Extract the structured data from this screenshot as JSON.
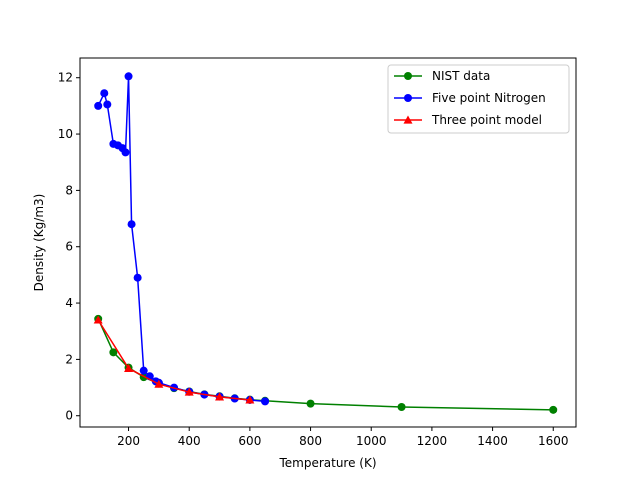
{
  "chart_data": {
    "type": "line",
    "title": "",
    "xlabel": "Temperature (K)",
    "ylabel": "Density (Kg/m3)",
    "xlim": [
      40,
      1675
    ],
    "ylim": [
      -0.4,
      12.7
    ],
    "xticks": [
      200,
      400,
      600,
      800,
      1000,
      1200,
      1400,
      1600
    ],
    "yticks": [
      0,
      2,
      4,
      6,
      8,
      10,
      12
    ],
    "grid": false,
    "legend_position": "top-right",
    "series": [
      {
        "name": "NIST data",
        "color": "#008000",
        "marker": "circle",
        "x": [
          100,
          150,
          200,
          250,
          300,
          350,
          400,
          450,
          500,
          550,
          600,
          650,
          800,
          1100,
          1600
        ],
        "y": [
          3.44,
          2.25,
          1.71,
          1.37,
          1.14,
          0.98,
          0.86,
          0.76,
          0.69,
          0.62,
          0.57,
          0.53,
          0.43,
          0.31,
          0.21
        ]
      },
      {
        "name": "Five point Nitrogen",
        "color": "#0000ff",
        "marker": "circle",
        "x": [
          100,
          120,
          130,
          150,
          165,
          180,
          190,
          200,
          210,
          230,
          250,
          270,
          290,
          300,
          350,
          400,
          450,
          500,
          550,
          600,
          650
        ],
        "y": [
          11.0,
          11.45,
          11.05,
          9.65,
          9.6,
          9.5,
          9.35,
          12.05,
          6.8,
          4.9,
          1.6,
          1.4,
          1.22,
          1.17,
          1.0,
          0.85,
          0.75,
          0.68,
          0.61,
          0.56,
          0.51
        ]
      },
      {
        "name": "Three point model",
        "color": "#ff0000",
        "marker": "triangle",
        "x": [
          100,
          200,
          300,
          400,
          500,
          600
        ],
        "y": [
          3.4,
          1.68,
          1.12,
          0.84,
          0.67,
          0.56
        ]
      }
    ]
  }
}
